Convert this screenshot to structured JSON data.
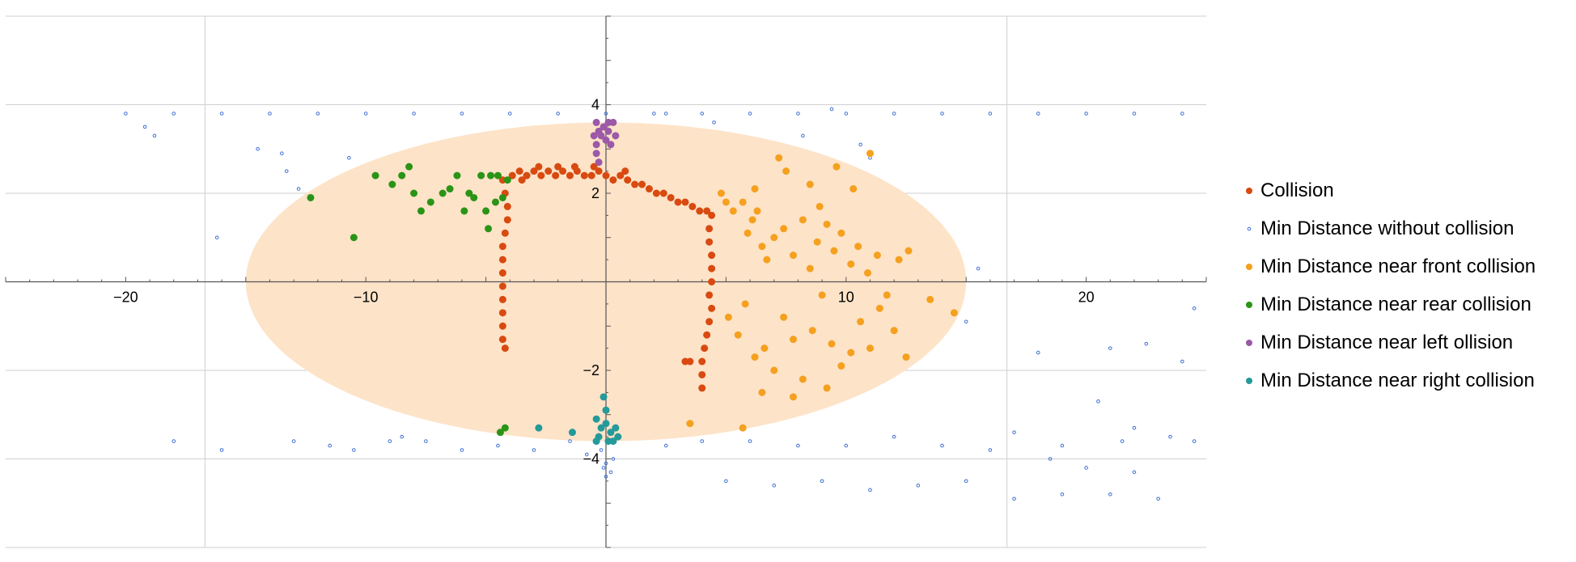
{
  "chart_data": {
    "type": "scatter",
    "xlim": [
      -25,
      25
    ],
    "ylim": [
      -6,
      6
    ],
    "x_ticks": [
      -20,
      -10,
      10,
      20
    ],
    "y_ticks": [
      4,
      2,
      -2,
      -4
    ],
    "x_tick_labels": [
      "−20",
      "−10",
      "10",
      "20"
    ],
    "y_tick_labels": [
      "4",
      "2",
      "−2",
      "−4"
    ],
    "gridlines_x": [
      -16.7,
      16.7
    ],
    "gridlines_y": [
      4,
      2,
      -2,
      -4
    ],
    "grid": true,
    "legend_position": "right",
    "region": {
      "shape": "ellipse",
      "center": [
        0,
        0
      ],
      "rx": 15,
      "ry": 3.6,
      "color": "#fde3c8"
    },
    "series": [
      {
        "name": "Collision",
        "color": "#d84a10",
        "marker": "filled",
        "values": [
          [
            -4.3,
            2.3
          ],
          [
            -4.2,
            2.0
          ],
          [
            -4.1,
            1.7
          ],
          [
            -4.1,
            1.4
          ],
          [
            -4.2,
            1.1
          ],
          [
            -4.3,
            0.8
          ],
          [
            -4.3,
            0.5
          ],
          [
            -4.3,
            0.2
          ],
          [
            -4.3,
            -0.1
          ],
          [
            -4.3,
            -0.4
          ],
          [
            -4.3,
            -0.7
          ],
          [
            -4.3,
            -1.0
          ],
          [
            -4.3,
            -1.3
          ],
          [
            -4.2,
            -1.5
          ],
          [
            -3.9,
            2.4
          ],
          [
            -3.6,
            2.5
          ],
          [
            -3.3,
            2.4
          ],
          [
            -3.0,
            2.5
          ],
          [
            -2.7,
            2.4
          ],
          [
            -2.4,
            2.5
          ],
          [
            -2.1,
            2.4
          ],
          [
            -1.8,
            2.5
          ],
          [
            -1.5,
            2.4
          ],
          [
            -1.2,
            2.5
          ],
          [
            -0.9,
            2.4
          ],
          [
            -0.6,
            2.4
          ],
          [
            -0.3,
            2.5
          ],
          [
            0.0,
            2.4
          ],
          [
            0.3,
            2.3
          ],
          [
            0.6,
            2.4
          ],
          [
            0.9,
            2.3
          ],
          [
            1.2,
            2.2
          ],
          [
            1.5,
            2.2
          ],
          [
            1.8,
            2.1
          ],
          [
            2.1,
            2.0
          ],
          [
            2.4,
            2.0
          ],
          [
            2.7,
            1.9
          ],
          [
            3.0,
            1.8
          ],
          [
            3.3,
            1.8
          ],
          [
            3.6,
            1.7
          ],
          [
            3.9,
            1.6
          ],
          [
            4.2,
            1.6
          ],
          [
            4.4,
            1.5
          ],
          [
            4.3,
            1.2
          ],
          [
            4.3,
            0.9
          ],
          [
            4.4,
            0.6
          ],
          [
            4.4,
            0.3
          ],
          [
            4.4,
            0.0
          ],
          [
            4.3,
            -0.3
          ],
          [
            4.4,
            -0.6
          ],
          [
            4.3,
            -0.9
          ],
          [
            4.2,
            -1.2
          ],
          [
            4.1,
            -1.5
          ],
          [
            4.0,
            -1.8
          ],
          [
            4.0,
            -2.1
          ],
          [
            4.0,
            -2.4
          ],
          [
            3.3,
            -1.8
          ],
          [
            3.5,
            -1.8
          ],
          [
            -3.5,
            2.3
          ],
          [
            -2.8,
            2.6
          ],
          [
            -2.0,
            2.6
          ],
          [
            -1.3,
            2.6
          ],
          [
            -0.5,
            2.6
          ],
          [
            0.8,
            2.5
          ]
        ]
      },
      {
        "name": "Min Distance without collision",
        "color": "#3b6fd6",
        "marker": "open",
        "values": [
          [
            -20,
            3.8
          ],
          [
            -18,
            3.8
          ],
          [
            -16,
            3.8
          ],
          [
            -14,
            3.8
          ],
          [
            -12,
            3.8
          ],
          [
            -10,
            3.8
          ],
          [
            -8,
            3.8
          ],
          [
            -6,
            3.8
          ],
          [
            -4,
            3.8
          ],
          [
            -2,
            3.8
          ],
          [
            0,
            3.8
          ],
          [
            2,
            3.8
          ],
          [
            4,
            3.8
          ],
          [
            6,
            3.8
          ],
          [
            8,
            3.8
          ],
          [
            10,
            3.8
          ],
          [
            12,
            3.8
          ],
          [
            14,
            3.8
          ],
          [
            16,
            3.8
          ],
          [
            18,
            3.8
          ],
          [
            20,
            3.8
          ],
          [
            22,
            3.8
          ],
          [
            24,
            3.8
          ],
          [
            -19.2,
            3.5
          ],
          [
            -18.8,
            3.3
          ],
          [
            -14.5,
            3.0
          ],
          [
            -13.3,
            2.5
          ],
          [
            -10.7,
            2.8
          ],
          [
            -16.2,
            1.0
          ],
          [
            -12.8,
            2.1
          ],
          [
            -13.5,
            2.9
          ],
          [
            8.2,
            3.3
          ],
          [
            10.6,
            3.1
          ],
          [
            11.0,
            2.8
          ],
          [
            9.4,
            3.9
          ],
          [
            15.5,
            0.3
          ],
          [
            -18.0,
            -3.6
          ],
          [
            -16.0,
            -3.8
          ],
          [
            -13.0,
            -3.6
          ],
          [
            -11.5,
            -3.7
          ],
          [
            -10.5,
            -3.8
          ],
          [
            -9.0,
            -3.6
          ],
          [
            -8.5,
            -3.5
          ],
          [
            -7.5,
            -3.6
          ],
          [
            -6.0,
            -3.8
          ],
          [
            -4.5,
            -3.7
          ],
          [
            -3.0,
            -3.8
          ],
          [
            -1.5,
            -3.6
          ],
          [
            -0.8,
            -3.9
          ],
          [
            0.0,
            -4.1
          ],
          [
            0.2,
            -4.3
          ],
          [
            0.3,
            -4.0
          ],
          [
            -0.2,
            -3.8
          ],
          [
            0.1,
            -3.6
          ],
          [
            0.0,
            -4.4
          ],
          [
            -0.1,
            -4.2
          ],
          [
            5.0,
            -4.5
          ],
          [
            7.0,
            -4.6
          ],
          [
            9.0,
            -4.5
          ],
          [
            11.0,
            -4.7
          ],
          [
            13.0,
            -4.6
          ],
          [
            15.0,
            -4.5
          ],
          [
            17.0,
            -4.9
          ],
          [
            19.0,
            -4.8
          ],
          [
            21.0,
            -4.8
          ],
          [
            23.0,
            -4.9
          ],
          [
            23.5,
            -3.5
          ],
          [
            22.0,
            -3.3
          ],
          [
            22.5,
            -1.4
          ],
          [
            20.5,
            -2.7
          ],
          [
            21.0,
            -1.5
          ],
          [
            24.0,
            -1.8
          ],
          [
            24.5,
            -0.6
          ],
          [
            18.0,
            -1.6
          ],
          [
            15.0,
            -0.9
          ],
          [
            17.0,
            -3.4
          ],
          [
            19.0,
            -3.7
          ],
          [
            21.5,
            -3.6
          ],
          [
            12.0,
            -3.5
          ],
          [
            10.0,
            -3.7
          ],
          [
            8.0,
            -3.7
          ],
          [
            6.0,
            -3.6
          ],
          [
            4.0,
            -3.6
          ],
          [
            2.5,
            -3.7
          ],
          [
            14.0,
            -3.7
          ],
          [
            16.0,
            -3.8
          ],
          [
            18.5,
            -4.0
          ],
          [
            20.0,
            -4.2
          ],
          [
            22.0,
            -4.3
          ],
          [
            24.5,
            -3.6
          ],
          [
            4.5,
            3.6
          ],
          [
            2.5,
            3.8
          ]
        ]
      },
      {
        "name": "Min Distance near front collision",
        "color": "#f5a01e",
        "marker": "filled",
        "values": [
          [
            4.8,
            2.0
          ],
          [
            5.0,
            1.8
          ],
          [
            5.3,
            1.6
          ],
          [
            5.7,
            1.8
          ],
          [
            6.1,
            1.4
          ],
          [
            5.9,
            1.1
          ],
          [
            6.3,
            1.6
          ],
          [
            6.5,
            0.8
          ],
          [
            6.7,
            0.5
          ],
          [
            7.0,
            1.0
          ],
          [
            7.4,
            1.2
          ],
          [
            7.8,
            0.6
          ],
          [
            8.2,
            1.4
          ],
          [
            8.5,
            0.3
          ],
          [
            8.8,
            0.9
          ],
          [
            9.2,
            1.3
          ],
          [
            9.5,
            0.7
          ],
          [
            9.8,
            1.1
          ],
          [
            10.2,
            0.4
          ],
          [
            10.5,
            0.8
          ],
          [
            10.9,
            0.2
          ],
          [
            11.3,
            0.6
          ],
          [
            11.7,
            -0.3
          ],
          [
            12.2,
            0.5
          ],
          [
            12.6,
            0.7
          ],
          [
            13.5,
            -0.4
          ],
          [
            14.5,
            -0.7
          ],
          [
            5.1,
            -0.8
          ],
          [
            5.5,
            -1.2
          ],
          [
            5.8,
            -0.5
          ],
          [
            6.2,
            -1.7
          ],
          [
            6.6,
            -1.5
          ],
          [
            7.0,
            -2.0
          ],
          [
            7.4,
            -0.8
          ],
          [
            7.8,
            -1.3
          ],
          [
            8.2,
            -2.2
          ],
          [
            8.6,
            -1.1
          ],
          [
            9.0,
            -0.3
          ],
          [
            9.4,
            -1.4
          ],
          [
            9.8,
            -1.9
          ],
          [
            10.2,
            -1.6
          ],
          [
            10.6,
            -0.9
          ],
          [
            11.0,
            -1.5
          ],
          [
            11.4,
            -0.6
          ],
          [
            12.0,
            -1.1
          ],
          [
            12.5,
            -1.7
          ],
          [
            9.2,
            -2.4
          ],
          [
            7.8,
            -2.6
          ],
          [
            6.5,
            -2.5
          ],
          [
            3.5,
            -3.2
          ],
          [
            5.7,
            -3.3
          ],
          [
            6.2,
            2.1
          ],
          [
            7.2,
            2.8
          ],
          [
            8.5,
            2.2
          ],
          [
            9.6,
            2.6
          ],
          [
            10.3,
            2.1
          ],
          [
            11.0,
            2.9
          ],
          [
            8.9,
            1.7
          ],
          [
            7.5,
            2.5
          ]
        ]
      },
      {
        "name": "Min Distance near rear collision",
        "color": "#2a9416",
        "marker": "filled",
        "values": [
          [
            -12.3,
            1.9
          ],
          [
            -10.5,
            1.0
          ],
          [
            -9.6,
            2.4
          ],
          [
            -8.9,
            2.2
          ],
          [
            -8.5,
            2.4
          ],
          [
            -8.2,
            2.6
          ],
          [
            -8.0,
            2.0
          ],
          [
            -7.7,
            1.6
          ],
          [
            -7.3,
            1.8
          ],
          [
            -6.8,
            2.0
          ],
          [
            -6.5,
            2.1
          ],
          [
            -6.2,
            2.4
          ],
          [
            -5.9,
            1.6
          ],
          [
            -5.7,
            2.0
          ],
          [
            -5.5,
            1.9
          ],
          [
            -5.0,
            1.6
          ],
          [
            -4.8,
            2.4
          ],
          [
            -4.5,
            2.4
          ],
          [
            -4.3,
            1.9
          ],
          [
            -4.1,
            2.3
          ],
          [
            -5.2,
            2.4
          ],
          [
            -4.9,
            1.2
          ],
          [
            -4.6,
            1.8
          ],
          [
            -4.4,
            -3.4
          ],
          [
            -4.2,
            -3.3
          ]
        ]
      },
      {
        "name": "Min Distance near left ollision",
        "color": "#9b59a7",
        "marker": "filled",
        "values": [
          [
            -0.4,
            3.6
          ],
          [
            -0.3,
            3.4
          ],
          [
            -0.1,
            3.5
          ],
          [
            0.1,
            3.4
          ],
          [
            0.3,
            3.6
          ],
          [
            -0.2,
            3.3
          ],
          [
            0.0,
            3.2
          ],
          [
            -0.4,
            3.1
          ],
          [
            -0.4,
            2.9
          ],
          [
            -0.3,
            2.7
          ],
          [
            0.2,
            3.1
          ],
          [
            0.4,
            3.3
          ],
          [
            -0.5,
            3.3
          ],
          [
            0.1,
            3.6
          ]
        ]
      },
      {
        "name": "Min Distance near right collision",
        "color": "#249a9a",
        "marker": "filled",
        "values": [
          [
            -0.4,
            -3.1
          ],
          [
            -0.2,
            -3.3
          ],
          [
            0.0,
            -3.2
          ],
          [
            0.2,
            -3.4
          ],
          [
            0.4,
            -3.3
          ],
          [
            -0.3,
            -3.5
          ],
          [
            0.1,
            -3.6
          ],
          [
            0.3,
            -3.6
          ],
          [
            -0.1,
            -2.6
          ],
          [
            0.0,
            -2.9
          ],
          [
            -0.4,
            -3.6
          ],
          [
            0.5,
            -3.5
          ],
          [
            -1.4,
            -3.4
          ],
          [
            -2.8,
            -3.3
          ]
        ]
      }
    ]
  }
}
